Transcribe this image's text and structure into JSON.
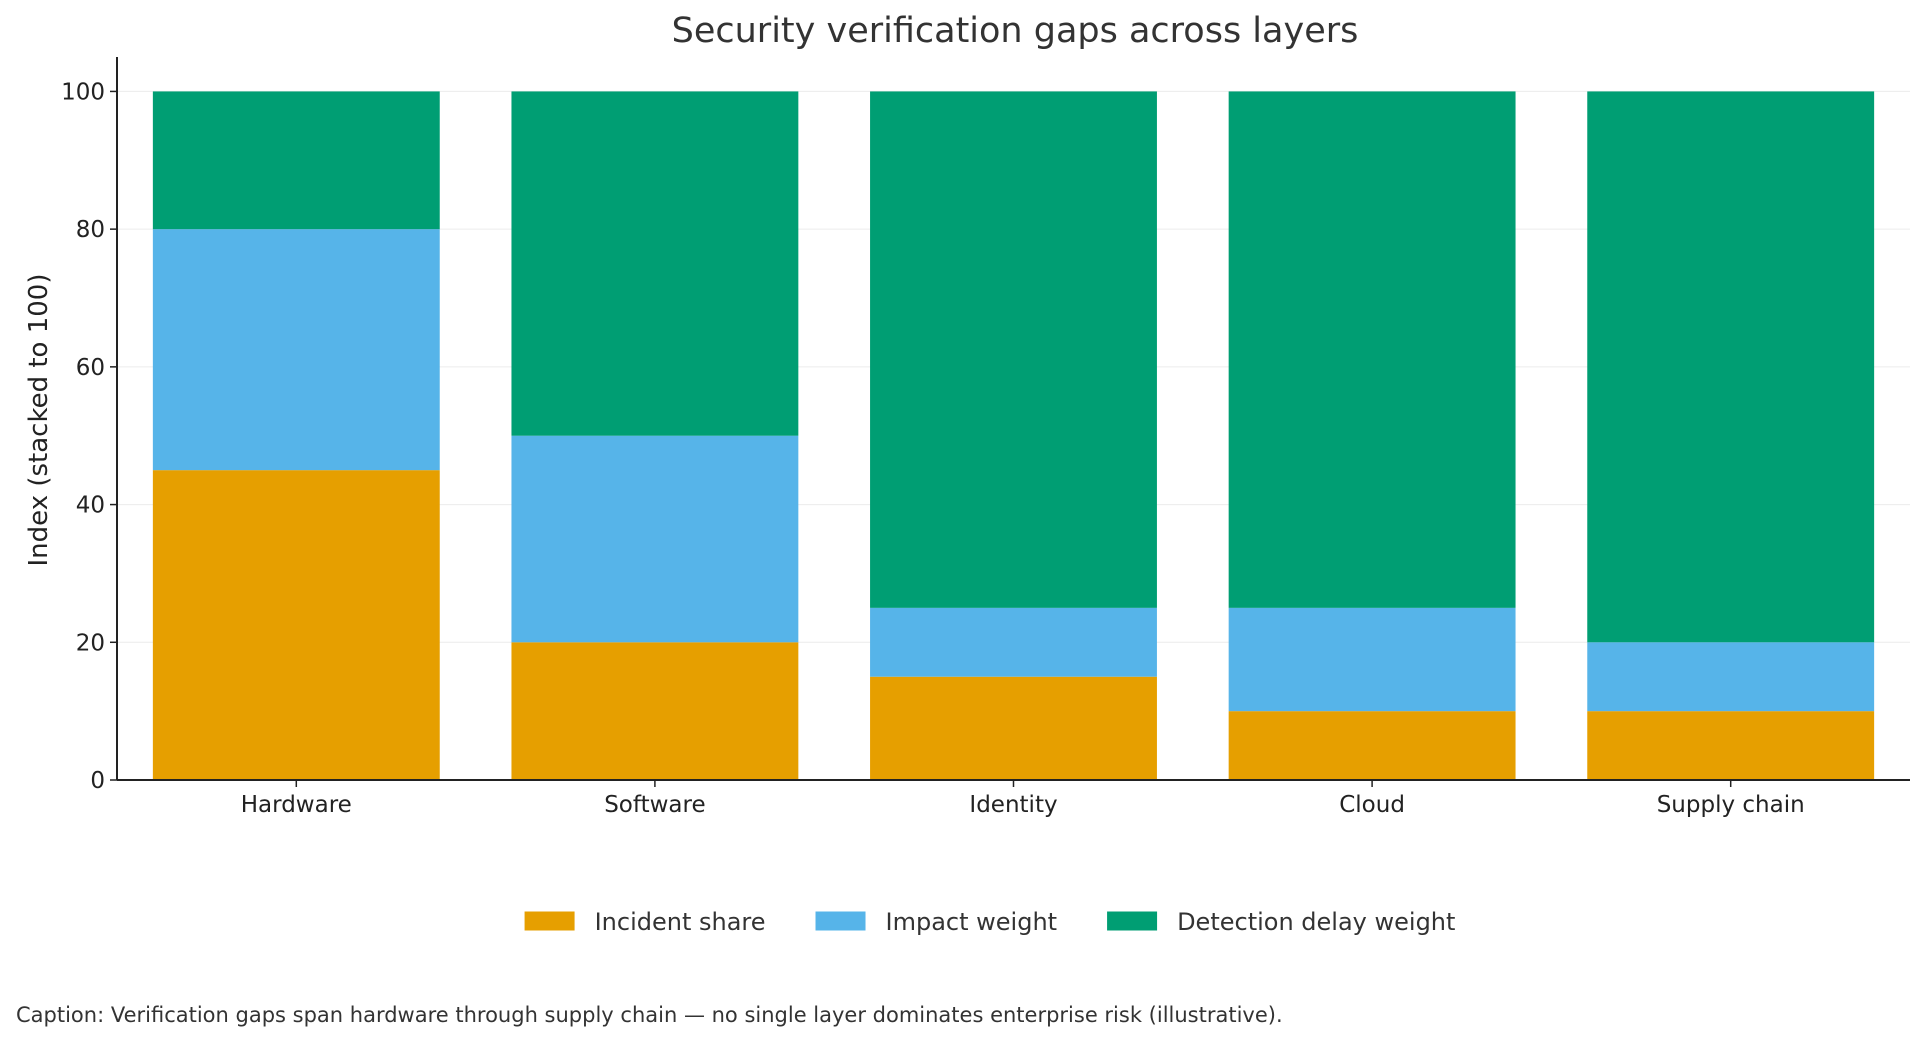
{
  "chart_data": {
    "type": "bar",
    "stacked": true,
    "title": "Security verification gaps across layers",
    "xlabel": "",
    "ylabel": "Index (stacked to 100)",
    "categories": [
      "Hardware",
      "Software",
      "Identity",
      "Cloud",
      "Supply chain"
    ],
    "series": [
      {
        "name": "Incident share",
        "color": "#E69F00",
        "values": [
          45,
          20,
          15,
          10,
          10
        ]
      },
      {
        "name": "Impact weight",
        "color": "#56B4E9",
        "values": [
          35,
          30,
          10,
          15,
          10
        ]
      },
      {
        "name": "Detection delay weight",
        "color": "#009E73",
        "values": [
          20,
          50,
          75,
          75,
          80
        ]
      }
    ],
    "ylim": [
      0,
      105
    ],
    "yticks": [
      0,
      20,
      40,
      60,
      80,
      100
    ],
    "grid": true,
    "legend": "bottom-center"
  },
  "caption": "Caption: Verification gaps span hardware through supply chain — no single layer dominates enterprise risk (illustrative)."
}
